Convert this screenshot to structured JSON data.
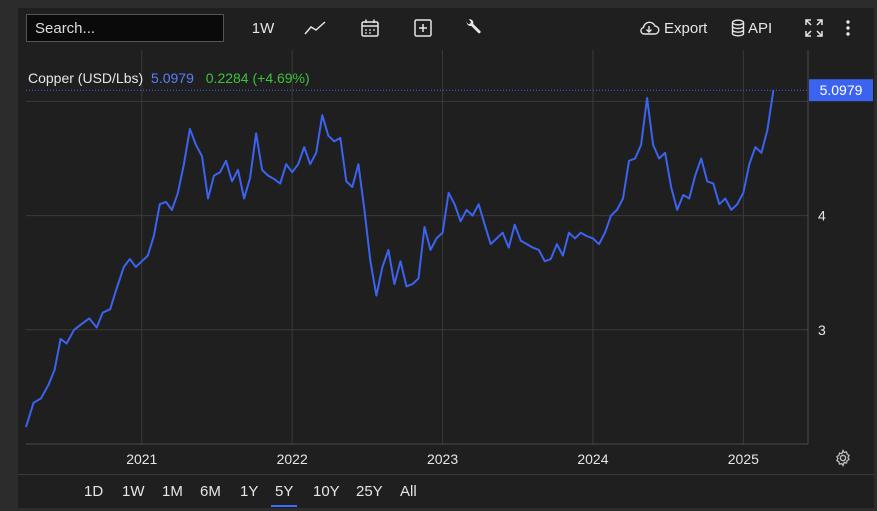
{
  "toolbar": {
    "search_placeholder": "Search...",
    "interval_label": "1W",
    "export_label": "Export",
    "api_label": "API",
    "icons": [
      "line-chart-icon",
      "calendar-icon",
      "add-box-icon",
      "wrench-icon",
      "cloud-download-icon",
      "database-icon",
      "fullscreen-icon",
      "more-vertical-icon"
    ]
  },
  "legend": {
    "name": "Copper (USD/Lbs)",
    "price": "5.0979",
    "change": "0.2284 (+4.69%)"
  },
  "colors": {
    "line": "#3b63f0",
    "up": "#3ec13e",
    "label_bg": "#3b63f0",
    "background": "#1f1f1f",
    "grid": "#3a3a3a"
  },
  "ranges": {
    "items": [
      "1D",
      "1W",
      "1M",
      "6M",
      "1Y",
      "5Y",
      "10Y",
      "25Y",
      "All"
    ],
    "active": "5Y"
  },
  "chart_data": {
    "type": "line",
    "title": "Copper (USD/Lbs)",
    "xlabel": "",
    "ylabel": "",
    "x_ticks": [
      "2021",
      "2022",
      "2023",
      "2024",
      "2025"
    ],
    "y_ticks": [
      "3",
      "4"
    ],
    "ylim": [
      2.0,
      5.45
    ],
    "xlim": [
      2020.23,
      2025.43
    ],
    "grid": true,
    "last_value_label": "5.0979",
    "series": [
      {
        "name": "Copper (USD/Lbs)",
        "points": [
          [
            2020.23,
            2.15
          ],
          [
            2020.28,
            2.36
          ],
          [
            2020.33,
            2.4
          ],
          [
            2020.38,
            2.52
          ],
          [
            2020.42,
            2.65
          ],
          [
            2020.46,
            2.92
          ],
          [
            2020.5,
            2.88
          ],
          [
            2020.55,
            3.0
          ],
          [
            2020.6,
            3.05
          ],
          [
            2020.65,
            3.1
          ],
          [
            2020.7,
            3.02
          ],
          [
            2020.74,
            3.15
          ],
          [
            2020.79,
            3.18
          ],
          [
            2020.83,
            3.35
          ],
          [
            2020.88,
            3.55
          ],
          [
            2020.92,
            3.62
          ],
          [
            2020.96,
            3.55
          ],
          [
            2021.0,
            3.6
          ],
          [
            2021.04,
            3.65
          ],
          [
            2021.08,
            3.82
          ],
          [
            2021.12,
            4.1
          ],
          [
            2021.16,
            4.12
          ],
          [
            2021.2,
            4.05
          ],
          [
            2021.24,
            4.2
          ],
          [
            2021.28,
            4.45
          ],
          [
            2021.32,
            4.76
          ],
          [
            2021.36,
            4.62
          ],
          [
            2021.4,
            4.52
          ],
          [
            2021.44,
            4.15
          ],
          [
            2021.48,
            4.35
          ],
          [
            2021.52,
            4.38
          ],
          [
            2021.56,
            4.48
          ],
          [
            2021.6,
            4.3
          ],
          [
            2021.64,
            4.4
          ],
          [
            2021.68,
            4.15
          ],
          [
            2021.72,
            4.33
          ],
          [
            2021.76,
            4.72
          ],
          [
            2021.8,
            4.4
          ],
          [
            2021.84,
            4.35
          ],
          [
            2021.88,
            4.32
          ],
          [
            2021.92,
            4.28
          ],
          [
            2021.96,
            4.45
          ],
          [
            2022.0,
            4.38
          ],
          [
            2022.04,
            4.45
          ],
          [
            2022.08,
            4.6
          ],
          [
            2022.12,
            4.45
          ],
          [
            2022.16,
            4.55
          ],
          [
            2022.2,
            4.88
          ],
          [
            2022.24,
            4.7
          ],
          [
            2022.28,
            4.65
          ],
          [
            2022.32,
            4.68
          ],
          [
            2022.36,
            4.3
          ],
          [
            2022.4,
            4.25
          ],
          [
            2022.44,
            4.45
          ],
          [
            2022.48,
            4.05
          ],
          [
            2022.52,
            3.6
          ],
          [
            2022.56,
            3.3
          ],
          [
            2022.6,
            3.55
          ],
          [
            2022.64,
            3.7
          ],
          [
            2022.68,
            3.4
          ],
          [
            2022.72,
            3.6
          ],
          [
            2022.76,
            3.38
          ],
          [
            2022.8,
            3.4
          ],
          [
            2022.84,
            3.45
          ],
          [
            2022.88,
            3.9
          ],
          [
            2022.92,
            3.7
          ],
          [
            2022.96,
            3.8
          ],
          [
            2023.0,
            3.85
          ],
          [
            2023.04,
            4.2
          ],
          [
            2023.08,
            4.1
          ],
          [
            2023.12,
            3.95
          ],
          [
            2023.16,
            4.05
          ],
          [
            2023.2,
            4.0
          ],
          [
            2023.24,
            4.1
          ],
          [
            2023.28,
            3.92
          ],
          [
            2023.32,
            3.75
          ],
          [
            2023.36,
            3.8
          ],
          [
            2023.4,
            3.85
          ],
          [
            2023.44,
            3.72
          ],
          [
            2023.48,
            3.92
          ],
          [
            2023.52,
            3.78
          ],
          [
            2023.56,
            3.75
          ],
          [
            2023.6,
            3.72
          ],
          [
            2023.64,
            3.7
          ],
          [
            2023.68,
            3.6
          ],
          [
            2023.72,
            3.62
          ],
          [
            2023.76,
            3.75
          ],
          [
            2023.8,
            3.65
          ],
          [
            2023.84,
            3.85
          ],
          [
            2023.88,
            3.8
          ],
          [
            2023.92,
            3.85
          ],
          [
            2023.96,
            3.82
          ],
          [
            2024.0,
            3.8
          ],
          [
            2024.04,
            3.75
          ],
          [
            2024.08,
            3.85
          ],
          [
            2024.12,
            4.0
          ],
          [
            2024.16,
            4.05
          ],
          [
            2024.2,
            4.15
          ],
          [
            2024.24,
            4.48
          ],
          [
            2024.28,
            4.5
          ],
          [
            2024.32,
            4.62
          ],
          [
            2024.36,
            5.03
          ],
          [
            2024.4,
            4.62
          ],
          [
            2024.44,
            4.5
          ],
          [
            2024.48,
            4.55
          ],
          [
            2024.52,
            4.25
          ],
          [
            2024.56,
            4.05
          ],
          [
            2024.6,
            4.18
          ],
          [
            2024.64,
            4.15
          ],
          [
            2024.68,
            4.35
          ],
          [
            2024.72,
            4.5
          ],
          [
            2024.76,
            4.3
          ],
          [
            2024.8,
            4.28
          ],
          [
            2024.84,
            4.1
          ],
          [
            2024.88,
            4.15
          ],
          [
            2024.92,
            4.05
          ],
          [
            2024.96,
            4.1
          ],
          [
            2025.0,
            4.2
          ],
          [
            2025.04,
            4.45
          ],
          [
            2025.08,
            4.6
          ],
          [
            2025.12,
            4.55
          ],
          [
            2025.16,
            4.75
          ],
          [
            2025.2,
            5.0979
          ]
        ]
      }
    ]
  }
}
